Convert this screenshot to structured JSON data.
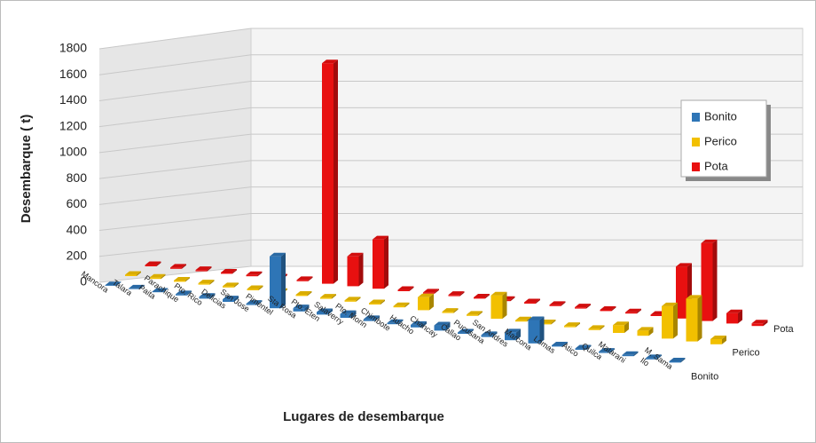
{
  "chart_data": {
    "type": "bar3d",
    "x_label": "Lugares de desembarque",
    "y_label": "Desembarque ( t)",
    "categories": [
      "Mancora",
      "Talara",
      "Paita",
      "Parachique",
      "Pto. Rico",
      "Delicias",
      "San Jose",
      "Pimentel",
      "Sta Rosa",
      "Pto. Eten",
      "Salaverry",
      "Pto. Morin",
      "Chimbote",
      "Huacho",
      "Chancay",
      "Callao",
      "Pucusana",
      "San Andres",
      "Marcona",
      "Lomas",
      "Atico",
      "Quilca",
      "Matarani",
      "Ilo",
      "M. Sama"
    ],
    "series": [
      {
        "name": "Bonito",
        "color": "#2e75b6",
        "values": [
          5,
          5,
          5,
          10,
          15,
          20,
          10,
          400,
          25,
          20,
          30,
          15,
          10,
          20,
          40,
          10,
          15,
          60,
          180,
          10,
          10,
          10,
          10,
          10,
          10
        ]
      },
      {
        "name": "Perico",
        "color": "#f2c000",
        "values": [
          10,
          10,
          10,
          10,
          10,
          10,
          10,
          10,
          10,
          10,
          10,
          10,
          100,
          10,
          10,
          180,
          10,
          10,
          10,
          10,
          60,
          40,
          250,
          330,
          40
        ]
      },
      {
        "name": "Pota",
        "color": "#e81010",
        "values": [
          10,
          10,
          10,
          10,
          10,
          10,
          10,
          1700,
          230,
          380,
          10,
          10,
          10,
          10,
          10,
          10,
          10,
          10,
          10,
          10,
          10,
          400,
          600,
          80,
          20
        ]
      }
    ],
    "ylim": [
      0,
      1800
    ],
    "yticks": [
      0,
      200,
      400,
      600,
      800,
      1000,
      1200,
      1400,
      1600,
      1800
    ],
    "grid": true,
    "legend": "upper right"
  }
}
